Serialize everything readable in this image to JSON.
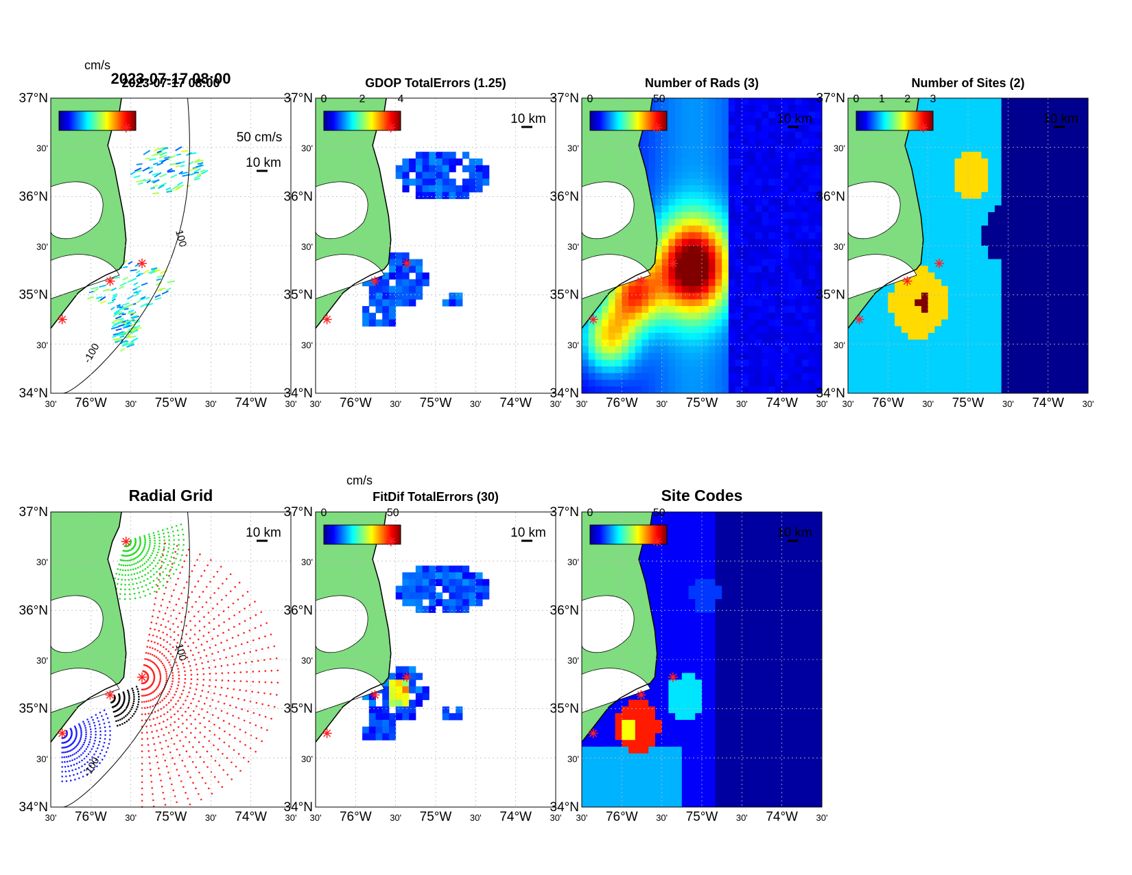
{
  "figure": {
    "timestamp": "2023-07-17 08:00",
    "lat_ticks": [
      {
        "label": "37°N",
        "minor": false
      },
      {
        "label": "30'",
        "minor": true
      },
      {
        "label": "36°N",
        "minor": false
      },
      {
        "label": "30'",
        "minor": true
      },
      {
        "label": "35°N",
        "minor": false
      },
      {
        "label": "30'",
        "minor": true
      },
      {
        "label": "34°N",
        "minor": false
      }
    ],
    "lon_ticks": [
      {
        "label": "30'",
        "minor": true
      },
      {
        "label": "76°W",
        "minor": false
      },
      {
        "label": "30'",
        "minor": true
      },
      {
        "label": "75°W",
        "minor": false
      },
      {
        "label": "30'",
        "minor": true
      },
      {
        "label": "74°W",
        "minor": false
      },
      {
        "label": "30'",
        "minor": true
      }
    ],
    "scale_label": "10 km",
    "vector_ref_label": "50 cm/s",
    "units_label": "cm/s",
    "contour_label": "-100",
    "contour_label_2": "100"
  },
  "panels": [
    {
      "id": "totals",
      "title": "2023-07-17 08:00",
      "colorbar_ticks": [],
      "colorbar_title": "cm/s"
    },
    {
      "id": "gdop",
      "title": "GDOP TotalErrors (1.25)",
      "colorbar_ticks": [
        "0",
        "2",
        "4"
      ]
    },
    {
      "id": "nrads",
      "title": "Number of Rads (3)",
      "colorbar_ticks": [
        "0",
        "50"
      ]
    },
    {
      "id": "nsites",
      "title": "Number of Sites (2)",
      "colorbar_ticks": [
        "0",
        "1",
        "2",
        "3"
      ]
    },
    {
      "id": "radgrid",
      "title": "Radial Grid",
      "colorbar_ticks": []
    },
    {
      "id": "fitdif",
      "title": "FitDif TotalErrors (30)",
      "colorbar_ticks": [
        "0",
        "50"
      ],
      "colorbar_title": "cm/s"
    },
    {
      "id": "sitecodes",
      "title": "Site Codes",
      "colorbar_ticks": [
        "0",
        "50"
      ]
    }
  ],
  "colors": {
    "land": "#7fdc7f",
    "radar_site": "#ff2020",
    "jet_low": "#00008f",
    "jet_high": "#800000",
    "grid_green": "#22dd22",
    "grid_red": "#ff2020",
    "grid_blue": "#2020ff",
    "grid_black": "#000000"
  },
  "contour_annotations": {
    "nrads": [
      "3"
    ],
    "nsites": [
      "2"
    ],
    "fitdif": [
      "30"
    ]
  }
}
